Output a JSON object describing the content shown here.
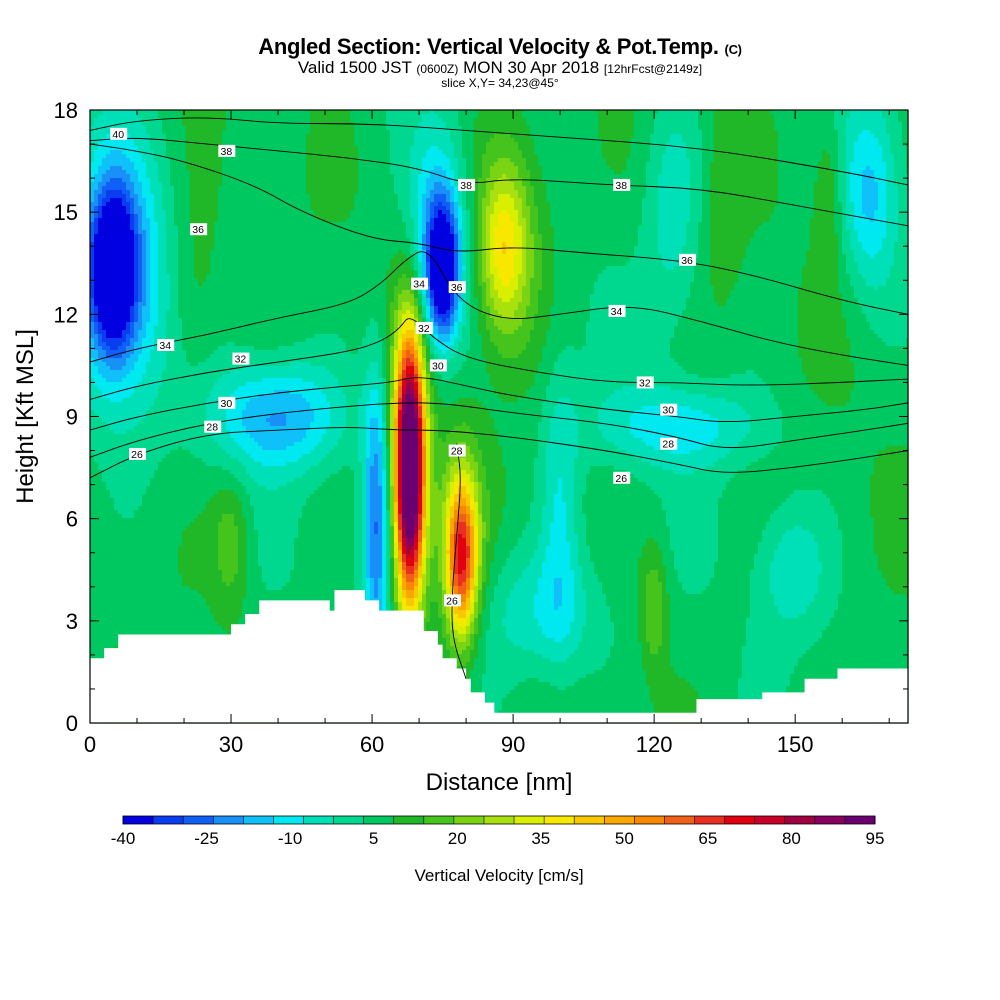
{
  "header": {
    "title": "Angled Section: Vertical Velocity & Pot.Temp.",
    "title_units": "(C)",
    "valid_prefix": "Valid 1500 JST",
    "valid_utc": "(0600Z)",
    "valid_date": "MON 30 Apr 2018",
    "forecast_tag": "[12hrFcst@2149z]",
    "slice": "slice X,Y= 34,23@45°"
  },
  "chart_data": {
    "type": "heatmap",
    "title": "Angled Section: Vertical Velocity & Pot.Temp. (C)",
    "xlabel": "Distance [nm]",
    "ylabel": "Height [Kft MSL]",
    "xlim": [
      0,
      174
    ],
    "ylim": [
      0,
      18
    ],
    "x_ticks": [
      0,
      30,
      60,
      90,
      120,
      150
    ],
    "y_ticks": [
      0,
      3,
      6,
      9,
      12,
      15,
      18
    ],
    "colorbar": {
      "label": "Vertical Velocity [cm/s]",
      "ticks": [
        -40,
        -25,
        -10,
        5,
        20,
        35,
        50,
        65,
        80,
        95
      ],
      "min": -40,
      "max": 95,
      "colors": [
        "#0000e0",
        "#0a3cf0",
        "#1060f8",
        "#1890f8",
        "#10c0f8",
        "#00e8f0",
        "#00e0b8",
        "#00d890",
        "#00c860",
        "#20b828",
        "#44c41c",
        "#7ad414",
        "#a8e010",
        "#d8f000",
        "#f8e800",
        "#f8c800",
        "#f8a800",
        "#f88800",
        "#f06018",
        "#e83020",
        "#e00010",
        "#c80028",
        "#a00040",
        "#880060",
        "#6a0070"
      ]
    },
    "velocity_field": {
      "background": 6,
      "features": [
        {
          "x": 5,
          "y": 13.3,
          "rx": 4.5,
          "ry": 2.2,
          "v": -40
        },
        {
          "x": 6,
          "y": 13.0,
          "rx": 10,
          "ry": 4.0,
          "v": -22
        },
        {
          "x": 68,
          "y": 7.5,
          "rx": 2.8,
          "ry": 3.6,
          "v": 88
        },
        {
          "x": 68,
          "y": 7.3,
          "rx": 4.4,
          "ry": 4.4,
          "v": 40
        },
        {
          "x": 79,
          "y": 4.8,
          "rx": 3.2,
          "ry": 2.2,
          "v": 55
        },
        {
          "x": 79,
          "y": 5.2,
          "rx": 4.8,
          "ry": 3.4,
          "v": 22
        },
        {
          "x": 61,
          "y": 6.0,
          "rx": 3.0,
          "ry": 4.5,
          "v": -25
        },
        {
          "x": 75,
          "y": 13.3,
          "rx": 3.2,
          "ry": 1.8,
          "v": -38
        },
        {
          "x": 74,
          "y": 14.0,
          "rx": 6.0,
          "ry": 3.2,
          "v": -20
        },
        {
          "x": 88,
          "y": 13.8,
          "rx": 5.0,
          "ry": 2.4,
          "v": 32
        },
        {
          "x": 90,
          "y": 14.5,
          "rx": 9.0,
          "ry": 3.5,
          "v": 18
        },
        {
          "x": 40,
          "y": 9.0,
          "rx": 14,
          "ry": 1.6,
          "v": -18
        },
        {
          "x": 30,
          "y": 5.3,
          "rx": 4.0,
          "ry": 2.0,
          "v": 18
        },
        {
          "x": 120,
          "y": 3.4,
          "rx": 2.8,
          "ry": 1.8,
          "v": 20
        },
        {
          "x": 125,
          "y": 8.7,
          "rx": 18,
          "ry": 1.2,
          "v": -10
        },
        {
          "x": 166,
          "y": 15.5,
          "rx": 6.0,
          "ry": 2.8,
          "v": -14
        },
        {
          "x": 96,
          "y": 3.2,
          "rx": 14,
          "ry": 2.0,
          "v": -8
        },
        {
          "x": 100,
          "y": 6.5,
          "rx": 4.0,
          "ry": 4.5,
          "v": -6
        },
        {
          "x": 124,
          "y": 15.0,
          "rx": 6.0,
          "ry": 3.5,
          "v": -6
        },
        {
          "x": 149,
          "y": 4.5,
          "rx": 7.0,
          "ry": 1.8,
          "v": -6
        },
        {
          "x": 22,
          "y": 12.5,
          "rx": 6.0,
          "ry": 3.0,
          "v": 14
        },
        {
          "x": 157,
          "y": 15.5,
          "rx": 3.0,
          "ry": 2.5,
          "v": 16
        },
        {
          "x": 135,
          "y": 15.5,
          "rx": 4.0,
          "ry": 3.0,
          "v": 12
        }
      ]
    },
    "terrain": [
      [
        0,
        1.9
      ],
      [
        3,
        2.2
      ],
      [
        6,
        2.6
      ],
      [
        30,
        2.9
      ],
      [
        33,
        3.2
      ],
      [
        36,
        3.6
      ],
      [
        48,
        3.6
      ],
      [
        51,
        3.3
      ],
      [
        52,
        3.9
      ],
      [
        58,
        3.9
      ],
      [
        58.5,
        3.6
      ],
      [
        61,
        3.6
      ],
      [
        61.5,
        3.3
      ],
      [
        70,
        3.3
      ],
      [
        71,
        2.7
      ],
      [
        74,
        2.3
      ],
      [
        75,
        1.9
      ],
      [
        78,
        1.6
      ],
      [
        80,
        1.3
      ],
      [
        81,
        0.9
      ],
      [
        84,
        0.6
      ],
      [
        86,
        0.3
      ],
      [
        128,
        0.3
      ],
      [
        129,
        0.7
      ],
      [
        142,
        0.7
      ],
      [
        143,
        0.9
      ],
      [
        151,
        0.9
      ],
      [
        152,
        1.3
      ],
      [
        158,
        1.3
      ],
      [
        159,
        1.6
      ],
      [
        174,
        1.6
      ]
    ],
    "theta_contours": [
      {
        "value": 26,
        "points": [
          [
            0,
            7.2
          ],
          [
            10,
            7.9
          ],
          [
            25,
            8.5
          ],
          [
            40,
            8.6
          ],
          [
            55,
            8.7
          ],
          [
            65,
            8.6
          ],
          [
            75,
            8.6
          ],
          [
            90,
            8.4
          ],
          [
            110,
            8.0
          ],
          [
            125,
            7.6
          ],
          [
            135,
            7.3
          ],
          [
            150,
            7.5
          ],
          [
            165,
            7.8
          ],
          [
            174,
            8.0
          ]
        ],
        "label_at": [
          [
            10,
            7.9
          ],
          [
            113,
            7.2
          ]
        ]
      },
      {
        "value": 26,
        "points": [
          [
            80,
            1.3
          ],
          [
            77,
            2.5
          ],
          [
            77,
            3.8
          ],
          [
            78,
            5.5
          ],
          [
            79,
            7.2
          ],
          [
            78,
            8.2
          ]
        ],
        "label_at": [
          [
            77,
            3.6
          ]
        ]
      },
      {
        "value": 28,
        "points": [
          [
            0,
            7.8
          ],
          [
            10,
            8.3
          ],
          [
            25,
            8.8
          ],
          [
            40,
            9.1
          ],
          [
            55,
            9.3
          ],
          [
            65,
            9.4
          ],
          [
            75,
            9.4
          ],
          [
            90,
            9.1
          ],
          [
            110,
            8.8
          ],
          [
            125,
            8.4
          ],
          [
            135,
            8.0
          ],
          [
            150,
            8.3
          ],
          [
            165,
            8.6
          ],
          [
            174,
            8.8
          ]
        ],
        "label_at": [
          [
            26,
            8.7
          ],
          [
            123,
            8.2
          ],
          [
            78,
            8.0
          ]
        ]
      },
      {
        "value": 30,
        "points": [
          [
            0,
            8.6
          ],
          [
            10,
            9.0
          ],
          [
            25,
            9.4
          ],
          [
            40,
            9.7
          ],
          [
            55,
            9.9
          ],
          [
            64,
            10.0
          ],
          [
            70,
            10.2
          ],
          [
            80,
            9.9
          ],
          [
            90,
            9.6
          ],
          [
            110,
            9.2
          ],
          [
            125,
            9.0
          ],
          [
            135,
            8.8
          ],
          [
            150,
            9.0
          ],
          [
            165,
            9.2
          ],
          [
            174,
            9.4
          ]
        ],
        "label_at": [
          [
            29,
            9.4
          ],
          [
            123,
            9.2
          ],
          [
            74,
            10.5
          ]
        ]
      },
      {
        "value": 32,
        "points": [
          [
            0,
            9.5
          ],
          [
            10,
            9.9
          ],
          [
            25,
            10.3
          ],
          [
            40,
            10.6
          ],
          [
            55,
            10.9
          ],
          [
            62,
            11.2
          ],
          [
            66,
            11.6
          ],
          [
            68,
            12.0
          ],
          [
            73,
            11.3
          ],
          [
            80,
            10.7
          ],
          [
            95,
            10.3
          ],
          [
            110,
            10.0
          ],
          [
            125,
            10.0
          ],
          [
            140,
            9.9
          ],
          [
            160,
            10.0
          ],
          [
            174,
            10.1
          ]
        ],
        "label_at": [
          [
            32,
            10.7
          ],
          [
            118,
            10.0
          ],
          [
            71,
            11.6
          ]
        ]
      },
      {
        "value": 34,
        "points": [
          [
            0,
            10.6
          ],
          [
            10,
            11.0
          ],
          [
            25,
            11.4
          ],
          [
            40,
            11.9
          ],
          [
            55,
            12.3
          ],
          [
            62,
            12.9
          ],
          [
            67,
            13.6
          ],
          [
            72,
            14.0
          ],
          [
            78,
            12.4
          ],
          [
            88,
            11.8
          ],
          [
            100,
            12.0
          ],
          [
            115,
            12.3
          ],
          [
            130,
            11.8
          ],
          [
            145,
            11.2
          ],
          [
            160,
            10.8
          ],
          [
            174,
            10.5
          ]
        ],
        "label_at": [
          [
            16,
            11.1
          ],
          [
            112,
            12.1
          ],
          [
            70,
            12.9
          ]
        ]
      },
      {
        "value": 36,
        "points": [
          [
            0,
            17.0
          ],
          [
            10,
            16.8
          ],
          [
            20,
            16.5
          ],
          [
            35,
            15.8
          ],
          [
            45,
            15.0
          ],
          [
            60,
            14.2
          ],
          [
            70,
            14.1
          ],
          [
            78,
            13.8
          ],
          [
            90,
            14.0
          ],
          [
            105,
            13.8
          ],
          [
            125,
            13.6
          ],
          [
            140,
            13.2
          ],
          [
            160,
            12.4
          ],
          [
            174,
            12.0
          ]
        ],
        "label_at": [
          [
            23,
            14.5
          ],
          [
            78,
            12.8
          ],
          [
            127,
            13.6
          ]
        ]
      },
      {
        "value": 38,
        "points": [
          [
            0,
            17.1
          ],
          [
            10,
            17.2
          ],
          [
            25,
            17.0
          ],
          [
            40,
            16.8
          ],
          [
            55,
            16.6
          ],
          [
            70,
            16.3
          ],
          [
            80,
            15.8
          ],
          [
            90,
            16.0
          ],
          [
            110,
            15.8
          ],
          [
            130,
            15.7
          ],
          [
            150,
            15.2
          ],
          [
            174,
            14.6
          ]
        ],
        "label_at": [
          [
            29,
            16.8
          ],
          [
            80,
            15.8
          ],
          [
            113,
            15.8
          ]
        ]
      },
      {
        "value": 40,
        "points": [
          [
            0,
            17.4
          ],
          [
            10,
            17.7
          ],
          [
            25,
            17.8
          ],
          [
            40,
            17.6
          ],
          [
            60,
            17.6
          ],
          [
            80,
            17.4
          ],
          [
            100,
            17.2
          ],
          [
            130,
            16.9
          ],
          [
            160,
            16.2
          ],
          [
            174,
            15.8
          ]
        ],
        "label_at": [
          [
            6,
            17.3
          ]
        ]
      }
    ]
  }
}
